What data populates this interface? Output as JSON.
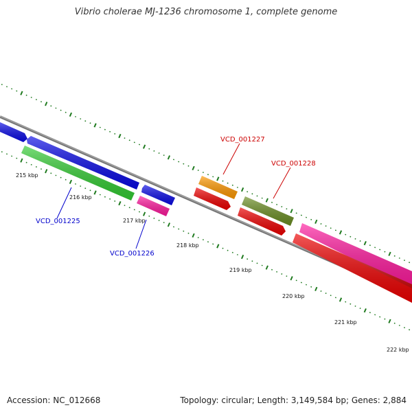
{
  "title": "Vibrio cholerae MJ-1236 chromosome 1, complete genome",
  "footer": {
    "accession": "Accession: NC_012668",
    "summary": "Topology: circular; Length: 3,149,584 bp; Genes: 2,884"
  },
  "tick_labels": [
    "215 kbp",
    "216 kbp",
    "217 kbp",
    "218 kbp",
    "219 kbp",
    "220 kbp",
    "221 kbp",
    "222 kbp"
  ],
  "gene_labels": [
    {
      "text": "VCD_001225",
      "color": "#0000cc"
    },
    {
      "text": "VCD_001226",
      "color": "#0000cc"
    },
    {
      "text": "VCD_001227",
      "color": "#cc0000"
    },
    {
      "text": "VCD_001228",
      "color": "#cc0000"
    }
  ],
  "colors": {
    "backbone": "#888888",
    "ticks": "#1f7a1f",
    "blue": "#0a0ae6",
    "green": "#33cc33",
    "magenta": "#ff1a9e",
    "orange": "#ff9900",
    "red": "#ee0000",
    "olive": "#6b8e23"
  }
}
